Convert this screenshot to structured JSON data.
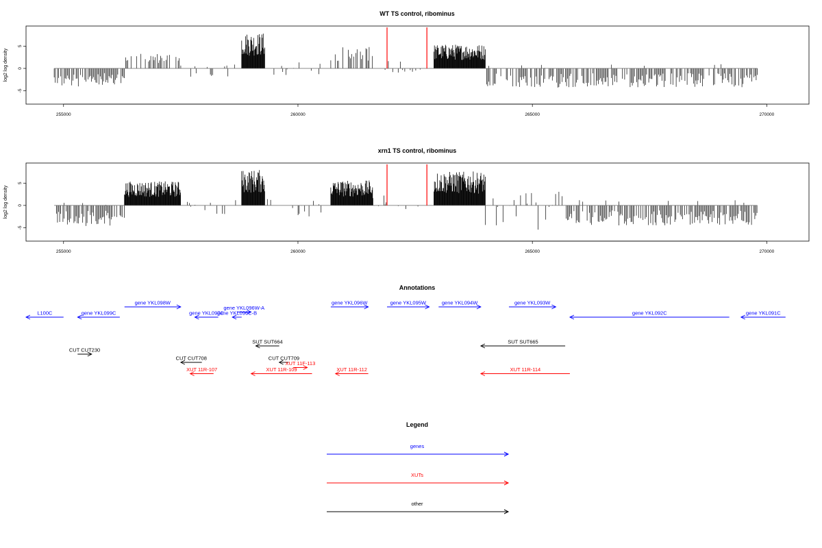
{
  "chart_data": [
    {
      "type": "bar",
      "title": "WT TS control, ribominus",
      "ylabel": "log2 log density",
      "xlabel": "",
      "xlim": [
        254200,
        270900
      ],
      "ylim": [
        -8,
        9.5
      ],
      "yticks": [
        -5,
        0,
        5
      ],
      "xticks": [
        255000,
        260000,
        265000,
        270000
      ],
      "red_markers": [
        261900,
        262750
      ],
      "grid": false,
      "blocks": [
        {
          "x0": 254800,
          "x1": 256300,
          "lo": -4.2,
          "hi": 0
        },
        {
          "x0": 256300,
          "x1": 257500,
          "lo": 0,
          "hi": 3.4
        },
        {
          "x0": 257500,
          "x1": 258800,
          "lo": -2.3,
          "hi": 1.0
        },
        {
          "x0": 258800,
          "x1": 259300,
          "lo": 0,
          "hi": 8.0
        },
        {
          "x0": 259300,
          "x1": 260500,
          "lo": -1.6,
          "hi": 1.4
        },
        {
          "x0": 260700,
          "x1": 261600,
          "lo": 0,
          "hi": 4.8
        },
        {
          "x0": 261600,
          "x1": 262900,
          "lo": -1.0,
          "hi": 2.3
        },
        {
          "x0": 262900,
          "x1": 264000,
          "lo": 0,
          "hi": 5.4
        },
        {
          "x0": 264000,
          "x1": 269800,
          "lo": -4.3,
          "hi": 1.0
        }
      ]
    },
    {
      "type": "bar",
      "title": "xrn1 TS control, ribominus",
      "ylabel": "log2 log density",
      "xlabel": "",
      "xlim": [
        254200,
        270900
      ],
      "ylim": [
        -8,
        9.5
      ],
      "yticks": [
        -5,
        0,
        5
      ],
      "xticks": [
        255000,
        260000,
        265000,
        270000
      ],
      "red_markers": [
        261900,
        262750
      ],
      "grid": false,
      "blocks": [
        {
          "x0": 254800,
          "x1": 256300,
          "lo": -4.8,
          "hi": 0.8
        },
        {
          "x0": 256300,
          "x1": 257500,
          "lo": 0,
          "hi": 5.4
        },
        {
          "x0": 257500,
          "x1": 258800,
          "lo": -2.0,
          "hi": 1.2
        },
        {
          "x0": 258800,
          "x1": 259300,
          "lo": 0,
          "hi": 8.0
        },
        {
          "x0": 259300,
          "x1": 260500,
          "lo": -3.0,
          "hi": 2.2
        },
        {
          "x0": 260700,
          "x1": 261600,
          "lo": 0,
          "hi": 5.6
        },
        {
          "x0": 261600,
          "x1": 262900,
          "lo": -1.2,
          "hi": 2.6
        },
        {
          "x0": 262900,
          "x1": 264000,
          "lo": 0,
          "hi": 7.6
        },
        {
          "x0": 264000,
          "x1": 265700,
          "lo": -5.8,
          "hi": 3.2
        },
        {
          "x0": 265700,
          "x1": 269800,
          "lo": -4.5,
          "hi": 1.2
        }
      ]
    },
    {
      "type": "other",
      "title": "Annotations",
      "features": [
        {
          "label": "L100C",
          "x0": 254200,
          "x1": 255000,
          "row": 0,
          "kind": "gene",
          "strand": "-"
        },
        {
          "label": "gene YKL099C",
          "x0": 255300,
          "x1": 256200,
          "row": 0,
          "kind": "gene",
          "strand": "-"
        },
        {
          "label": "gene YKL098W",
          "x0": 256300,
          "x1": 257500,
          "row": -1,
          "kind": "gene",
          "strand": "+"
        },
        {
          "label": "gene YKL097C",
          "x0": 257800,
          "x1": 258300,
          "row": 0,
          "kind": "gene",
          "strand": "-"
        },
        {
          "label": "gene YKL096W-A",
          "x0": 258700,
          "x1": 259000,
          "row": -0.5,
          "kind": "gene",
          "strand": "+"
        },
        {
          "label": "gene YKL096C-B",
          "x0": 258600,
          "x1": 258800,
          "row": 0,
          "kind": "gene",
          "strand": "-"
        },
        {
          "label": "gene YKL096W",
          "x0": 260700,
          "x1": 261500,
          "row": -1,
          "kind": "gene",
          "strand": "+"
        },
        {
          "label": "gene YKL095W",
          "x0": 261900,
          "x1": 262800,
          "row": -1,
          "kind": "gene",
          "strand": "+"
        },
        {
          "label": "gene YKL094W",
          "x0": 263000,
          "x1": 263900,
          "row": -1,
          "kind": "gene",
          "strand": "+"
        },
        {
          "label": "gene YKL093W",
          "x0": 264500,
          "x1": 265500,
          "row": -1,
          "kind": "gene",
          "strand": "+"
        },
        {
          "label": "gene YKL092C",
          "x0": 265800,
          "x1": 269200,
          "row": 0,
          "kind": "gene",
          "strand": "-"
        },
        {
          "label": "gene YKL091C",
          "x0": 269450,
          "x1": 270400,
          "row": 0,
          "kind": "gene",
          "strand": "-"
        },
        {
          "label": "SUT SUT664",
          "x0": 259100,
          "x1": 259600,
          "row": 2.8,
          "kind": "other",
          "strand": "-"
        },
        {
          "label": "SUT SUT665",
          "x0": 263900,
          "x1": 265700,
          "row": 2.8,
          "kind": "other",
          "strand": "-"
        },
        {
          "label": "CUT CUT230",
          "x0": 255300,
          "x1": 255600,
          "row": 3.6,
          "kind": "other",
          "strand": "+"
        },
        {
          "label": "CUT CUT708",
          "x0": 257500,
          "x1": 257950,
          "row": 4.4,
          "kind": "other",
          "strand": "-"
        },
        {
          "label": "CUT CUT709",
          "x0": 259600,
          "x1": 259800,
          "row": 4.4,
          "kind": "other",
          "strand": "-"
        },
        {
          "label": "XUT 11F-113",
          "x0": 259900,
          "x1": 260200,
          "row": 4.9,
          "kind": "xut",
          "strand": "+"
        },
        {
          "label": "XUT 11R-107",
          "x0": 257700,
          "x1": 258200,
          "row": 5.5,
          "kind": "xut",
          "strand": "-"
        },
        {
          "label": "XUT 11R-109",
          "x0": 259000,
          "x1": 260300,
          "row": 5.5,
          "kind": "xut",
          "strand": "-"
        },
        {
          "label": "XUT 11R-112",
          "x0": 260800,
          "x1": 261500,
          "row": 5.5,
          "kind": "xut",
          "strand": "-"
        },
        {
          "label": "XUT 11R-114",
          "x0": 263900,
          "x1": 265800,
          "row": 5.5,
          "kind": "xut",
          "strand": "-"
        }
      ]
    },
    {
      "type": "other",
      "title": "Legend",
      "entries": [
        {
          "label": "genes",
          "color": "#0000ff"
        },
        {
          "label": "XUTs",
          "color": "#ff0000"
        },
        {
          "label": "other",
          "color": "#000000"
        }
      ]
    }
  ],
  "colors": {
    "gene": "#0000ff",
    "xut": "#ff0000",
    "other": "#000000",
    "marker": "#ff0000"
  }
}
